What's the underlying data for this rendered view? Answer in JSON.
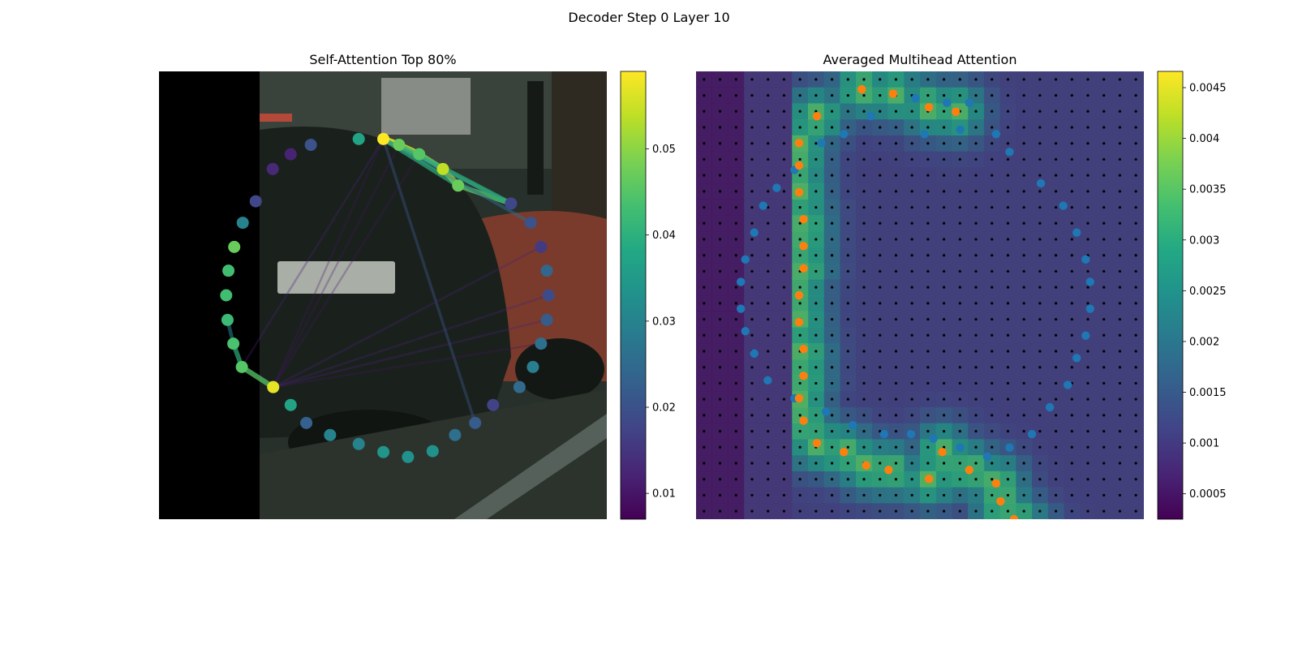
{
  "figure_title": "Decoder Step 0 Layer 10",
  "chart_data": [
    {
      "type": "scatter",
      "title": "Self-Attention Top 80%",
      "background": "photo of a dark BMW car parked on a street, left strip black",
      "colormap": "viridis",
      "colorbar": {
        "min": 0.007,
        "max": 0.059,
        "ticks": [
          0.01,
          0.02,
          0.03,
          0.04,
          0.05
        ]
      },
      "axes": {
        "x": [
          0,
          1
        ],
        "y": [
          0,
          1
        ]
      },
      "points": [
        {
          "x": 0.501,
          "y": 0.849,
          "v": 0.059
        },
        {
          "x": 0.536,
          "y": 0.836,
          "v": 0.047
        },
        {
          "x": 0.581,
          "y": 0.815,
          "v": 0.045
        },
        {
          "x": 0.634,
          "y": 0.782,
          "v": 0.054
        },
        {
          "x": 0.668,
          "y": 0.745,
          "v": 0.047
        },
        {
          "x": 0.786,
          "y": 0.705,
          "v": 0.018
        },
        {
          "x": 0.83,
          "y": 0.662,
          "v": 0.02
        },
        {
          "x": 0.853,
          "y": 0.608,
          "v": 0.016
        },
        {
          "x": 0.866,
          "y": 0.555,
          "v": 0.024
        },
        {
          "x": 0.87,
          "y": 0.5,
          "v": 0.019
        },
        {
          "x": 0.866,
          "y": 0.445,
          "v": 0.022
        },
        {
          "x": 0.853,
          "y": 0.392,
          "v": 0.026
        },
        {
          "x": 0.835,
          "y": 0.34,
          "v": 0.029
        },
        {
          "x": 0.805,
          "y": 0.295,
          "v": 0.025
        },
        {
          "x": 0.746,
          "y": 0.255,
          "v": 0.017
        },
        {
          "x": 0.706,
          "y": 0.215,
          "v": 0.022
        },
        {
          "x": 0.661,
          "y": 0.188,
          "v": 0.026
        },
        {
          "x": 0.611,
          "y": 0.152,
          "v": 0.033
        },
        {
          "x": 0.556,
          "y": 0.139,
          "v": 0.033
        },
        {
          "x": 0.501,
          "y": 0.15,
          "v": 0.034
        },
        {
          "x": 0.446,
          "y": 0.168,
          "v": 0.03
        },
        {
          "x": 0.382,
          "y": 0.188,
          "v": 0.03
        },
        {
          "x": 0.329,
          "y": 0.215,
          "v": 0.023
        },
        {
          "x": 0.294,
          "y": 0.255,
          "v": 0.037
        },
        {
          "x": 0.255,
          "y": 0.295,
          "v": 0.057
        },
        {
          "x": 0.185,
          "y": 0.34,
          "v": 0.045
        },
        {
          "x": 0.166,
          "y": 0.392,
          "v": 0.044
        },
        {
          "x": 0.153,
          "y": 0.445,
          "v": 0.042
        },
        {
          "x": 0.15,
          "y": 0.5,
          "v": 0.043
        },
        {
          "x": 0.155,
          "y": 0.555,
          "v": 0.043
        },
        {
          "x": 0.168,
          "y": 0.608,
          "v": 0.047
        },
        {
          "x": 0.187,
          "y": 0.662,
          "v": 0.03
        },
        {
          "x": 0.216,
          "y": 0.71,
          "v": 0.018
        },
        {
          "x": 0.254,
          "y": 0.782,
          "v": 0.013
        },
        {
          "x": 0.294,
          "y": 0.815,
          "v": 0.012
        },
        {
          "x": 0.339,
          "y": 0.836,
          "v": 0.02
        },
        {
          "x": 0.446,
          "y": 0.849,
          "v": 0.037
        }
      ],
      "edges": [
        {
          "from": 0,
          "to": 1,
          "v": 0.057
        },
        {
          "from": 1,
          "to": 2,
          "v": 0.055
        },
        {
          "from": 2,
          "to": 3,
          "v": 0.05
        },
        {
          "from": 3,
          "to": 4,
          "v": 0.055
        },
        {
          "from": 4,
          "to": 5,
          "v": 0.045
        },
        {
          "from": 0,
          "to": 5,
          "v": 0.03
        },
        {
          "from": 0,
          "to": 6,
          "v": 0.025
        },
        {
          "from": 24,
          "to": 25,
          "v": 0.045
        },
        {
          "from": 25,
          "to": 26,
          "v": 0.04
        },
        {
          "from": 24,
          "to": 9,
          "v": 0.012
        },
        {
          "from": 24,
          "to": 11,
          "v": 0.01
        },
        {
          "from": 24,
          "to": 10,
          "v": 0.012
        },
        {
          "from": 24,
          "to": 1,
          "v": 0.01
        },
        {
          "from": 24,
          "to": 2,
          "v": 0.01
        },
        {
          "from": 24,
          "to": 0,
          "v": 0.01
        },
        {
          "from": 25,
          "to": 0,
          "v": 0.012
        },
        {
          "from": 0,
          "to": 15,
          "v": 0.02
        },
        {
          "from": 0,
          "to": 4,
          "v": 0.04
        },
        {
          "from": 1,
          "to": 5,
          "v": 0.04
        },
        {
          "from": 26,
          "to": 27,
          "v": 0.03
        },
        {
          "from": 24,
          "to": 7,
          "v": 0.012
        }
      ]
    },
    {
      "type": "heatmap",
      "title": "Averaged Multihead Attention",
      "background": "same street photo, dimmed, with attention heatmap overlay",
      "colormap": "viridis",
      "colorbar": {
        "min": 0.00025,
        "max": 0.00466,
        "ticks": [
          0.0005,
          0.001,
          0.0015,
          0.002,
          0.0025,
          0.003,
          0.0035,
          0.004,
          0.0045
        ]
      },
      "grid": {
        "rows": 28,
        "cols": 28
      },
      "series": [
        {
          "name": "",
          "color": "#1f77b4",
          "points": [
            [
              0.49,
              0.94
            ],
            [
              0.56,
              0.93
            ],
            [
              0.61,
              0.93
            ],
            [
              0.39,
              0.9
            ],
            [
              0.33,
              0.86
            ],
            [
              0.28,
              0.84
            ],
            [
              0.22,
              0.78
            ],
            [
              0.18,
              0.74
            ],
            [
              0.15,
              0.7
            ],
            [
              0.13,
              0.64
            ],
            [
              0.11,
              0.58
            ],
            [
              0.1,
              0.53
            ],
            [
              0.1,
              0.47
            ],
            [
              0.11,
              0.42
            ],
            [
              0.13,
              0.37
            ],
            [
              0.16,
              0.31
            ],
            [
              0.22,
              0.27
            ],
            [
              0.29,
              0.24
            ],
            [
              0.35,
              0.21
            ],
            [
              0.42,
              0.19
            ],
            [
              0.48,
              0.19
            ],
            [
              0.53,
              0.18
            ],
            [
              0.59,
              0.16
            ],
            [
              0.65,
              0.14
            ],
            [
              0.7,
              0.16
            ],
            [
              0.75,
              0.19
            ],
            [
              0.79,
              0.25
            ],
            [
              0.83,
              0.3
            ],
            [
              0.85,
              0.36
            ],
            [
              0.87,
              0.41
            ],
            [
              0.88,
              0.47
            ],
            [
              0.88,
              0.53
            ],
            [
              0.87,
              0.58
            ],
            [
              0.85,
              0.64
            ],
            [
              0.82,
              0.7
            ],
            [
              0.77,
              0.75
            ],
            [
              0.7,
              0.82
            ],
            [
              0.67,
              0.86
            ],
            [
              0.59,
              0.87
            ],
            [
              0.51,
              0.86
            ]
          ]
        },
        {
          "name": "",
          "color": "#ff7f0e",
          "points": [
            [
              0.37,
              0.96
            ],
            [
              0.44,
              0.95
            ],
            [
              0.52,
              0.92
            ],
            [
              0.58,
              0.91
            ],
            [
              0.27,
              0.9
            ],
            [
              0.23,
              0.84
            ],
            [
              0.23,
              0.79
            ],
            [
              0.23,
              0.73
            ],
            [
              0.24,
              0.67
            ],
            [
              0.24,
              0.61
            ],
            [
              0.24,
              0.56
            ],
            [
              0.23,
              0.5
            ],
            [
              0.23,
              0.44
            ],
            [
              0.24,
              0.38
            ],
            [
              0.24,
              0.32
            ],
            [
              0.23,
              0.27
            ],
            [
              0.24,
              0.22
            ],
            [
              0.27,
              0.17
            ],
            [
              0.33,
              0.15
            ],
            [
              0.38,
              0.12
            ],
            [
              0.43,
              0.11
            ],
            [
              0.52,
              0.09
            ],
            [
              0.55,
              0.15
            ],
            [
              0.61,
              0.11
            ],
            [
              0.67,
              0.08
            ],
            [
              0.68,
              0.04
            ],
            [
              0.71,
              0.0
            ],
            [
              0.74,
              -0.03
            ]
          ]
        }
      ]
    }
  ]
}
